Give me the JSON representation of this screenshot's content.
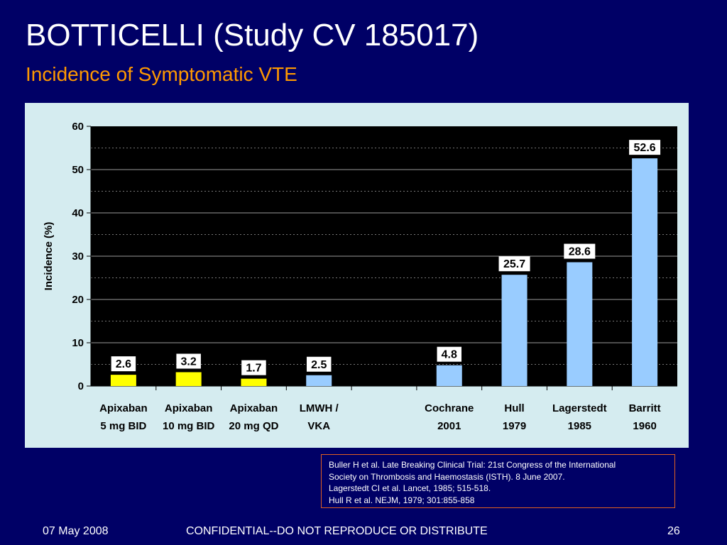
{
  "slide": {
    "title": "BOTTICELLI (Study CV 185017)",
    "subtitle": "Incidence of Symptomatic VTE"
  },
  "colors": {
    "background": "#000066",
    "subtitle": "#ff9900",
    "plot_area": "#000000",
    "panel": "#d5ecf0",
    "apixaban_bar": "#ffff00",
    "comparator_bar": "#99ccff",
    "reference_border": "#e06020"
  },
  "chart_data": {
    "type": "bar",
    "ylabel": "Incidence (%)",
    "ylim": [
      0,
      60
    ],
    "yticks": [
      0,
      10,
      20,
      30,
      40,
      50,
      60
    ],
    "grid": true,
    "categories": [
      {
        "line1": "Apixaban",
        "line2": "5 mg BID",
        "value": 2.6,
        "label": "2.6",
        "group": "apixaban"
      },
      {
        "line1": "Apixaban",
        "line2": "10 mg BID",
        "value": 3.2,
        "label": "3.2",
        "group": "apixaban"
      },
      {
        "line1": "Apixaban",
        "line2": "20 mg QD",
        "value": 1.7,
        "label": "1.7",
        "group": "apixaban"
      },
      {
        "line1": "LMWH /",
        "line2": "VKA",
        "value": 2.5,
        "label": "2.5",
        "group": "comparator"
      },
      {
        "line1": "",
        "line2": "",
        "value": null,
        "label": "",
        "group": "gap"
      },
      {
        "line1": "Cochrane",
        "line2": "2001",
        "value": 4.8,
        "label": "4.8",
        "group": "comparator"
      },
      {
        "line1": "Hull",
        "line2": "1979",
        "value": 25.7,
        "label": "25.7",
        "group": "comparator"
      },
      {
        "line1": "Lagerstedt",
        "line2": "1985",
        "value": 28.6,
        "label": "28.6",
        "group": "comparator"
      },
      {
        "line1": "Barritt",
        "line2": "1960",
        "value": 52.6,
        "label": "52.6",
        "group": "comparator"
      }
    ]
  },
  "references": [
    "Buller H et al. Late Breaking Clinical Trial: 21st Congress of the International",
    "Society on Thrombosis and Haemostasis (ISTH).  8 June 2007.",
    "Lagerstedt CI et al. Lancet, 1985; 515-518.",
    "Hull R et al. NEJM, 1979; 301:855-858"
  ],
  "footer": {
    "date": "07 May 2008",
    "confidential": "CONFIDENTIAL--DO NOT REPRODUCE OR DISTRIBUTE",
    "page": "26"
  }
}
